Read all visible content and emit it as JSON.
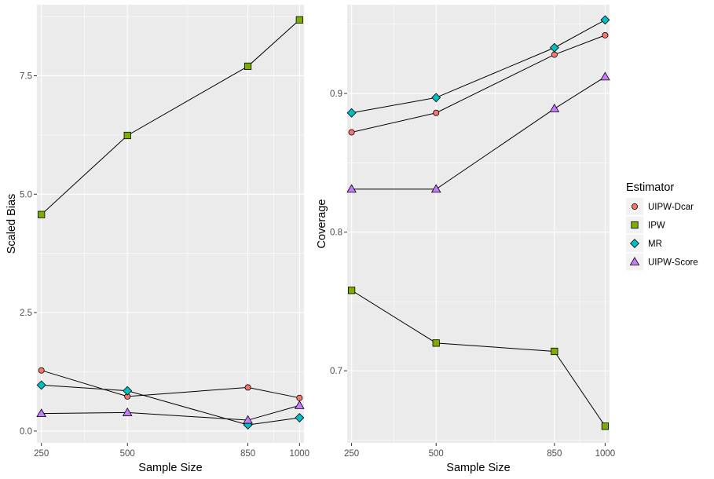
{
  "colors": {
    "UIPW-Dcar": "#F8766D",
    "IPW": "#7CAE00",
    "MR": "#00BFC4",
    "UIPW-Score": "#C77CFF"
  },
  "legend": {
    "title": "Estimator",
    "entries": [
      {
        "name": "UIPW-Dcar",
        "shape": "circle"
      },
      {
        "name": "IPW",
        "shape": "square"
      },
      {
        "name": "MR",
        "shape": "diamond"
      },
      {
        "name": "UIPW-Score",
        "shape": "triangle"
      }
    ]
  },
  "chart_data": [
    {
      "type": "line",
      "title": "",
      "xlabel": "Sample Size",
      "ylabel": "Scaled Bias",
      "xlim": [
        237,
        1013
      ],
      "ylim": [
        -0.25,
        9.0
      ],
      "x_ticks": [
        250,
        500,
        850,
        1000
      ],
      "x_tick_labels": [
        "250",
        "500",
        "850",
        "1000"
      ],
      "x_minor": [
        375,
        675,
        925
      ],
      "y_ticks": [
        0,
        2.5,
        5,
        7.5
      ],
      "y_tick_labels": [
        "0.0",
        "2.5",
        "5.0",
        "7.5"
      ],
      "y_minor": [
        1.25,
        3.75,
        6.25,
        8.75
      ],
      "x": [
        250,
        500,
        850,
        1000
      ],
      "series": [
        {
          "name": "UIPW-Dcar",
          "values": [
            1.28,
            0.73,
            0.92,
            0.7
          ]
        },
        {
          "name": "IPW",
          "values": [
            4.57,
            6.24,
            7.7,
            8.68
          ]
        },
        {
          "name": "MR",
          "values": [
            0.97,
            0.85,
            0.13,
            0.28
          ]
        },
        {
          "name": "UIPW-Score",
          "values": [
            0.37,
            0.39,
            0.23,
            0.54
          ]
        }
      ]
    },
    {
      "type": "line",
      "title": "",
      "xlabel": "Sample Size",
      "ylabel": "Coverage",
      "xlim": [
        237,
        1013
      ],
      "ylim": [
        0.648,
        0.964
      ],
      "x_ticks": [
        250,
        500,
        850,
        1000
      ],
      "x_tick_labels": [
        "250",
        "500",
        "850",
        "1000"
      ],
      "x_minor": [
        375,
        675,
        925
      ],
      "y_ticks": [
        0.7,
        0.8,
        0.9
      ],
      "y_tick_labels": [
        "0.7",
        "0.8",
        "0.9"
      ],
      "y_minor": [
        0.65,
        0.75,
        0.85,
        0.95
      ],
      "x": [
        250,
        500,
        850,
        1000
      ],
      "series": [
        {
          "name": "UIPW-Dcar",
          "values": [
            0.872,
            0.886,
            0.928,
            0.942
          ]
        },
        {
          "name": "IPW",
          "values": [
            0.758,
            0.72,
            0.714,
            0.66
          ]
        },
        {
          "name": "MR",
          "values": [
            0.886,
            0.897,
            0.933,
            0.953
          ]
        },
        {
          "name": "UIPW-Score",
          "values": [
            0.831,
            0.831,
            0.889,
            0.912
          ]
        }
      ]
    }
  ]
}
